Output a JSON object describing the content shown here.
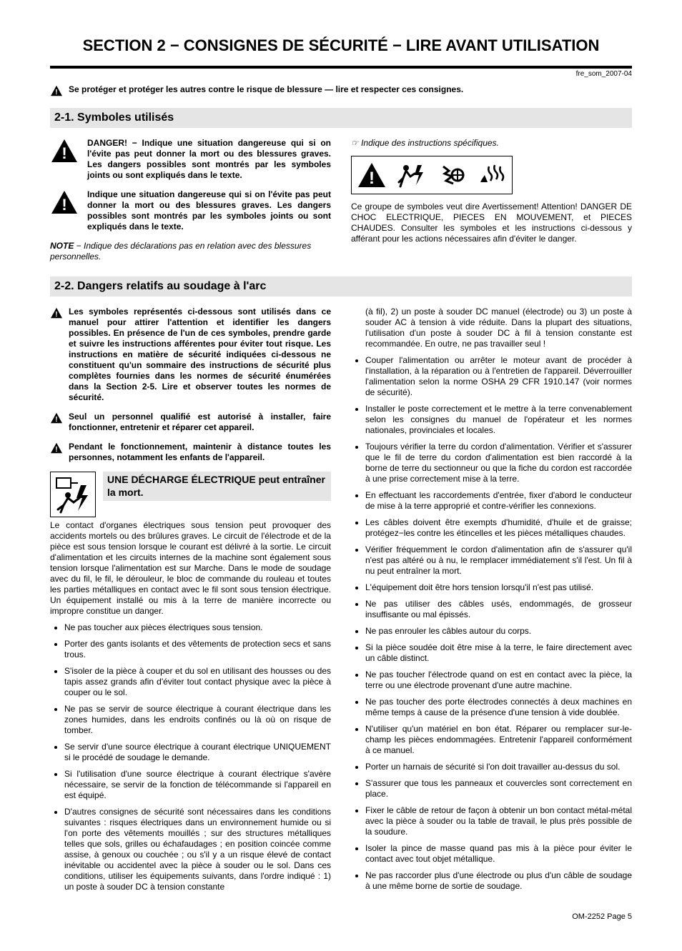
{
  "doc_ref": "fre_som_2007-04",
  "section_title": "SECTION 2 − CONSIGNES DE SÉCURITÉ − LIRE AVANT UTILISATION",
  "top_warning": "Se protéger et protéger les autres contre le risque de blessure — lire et respecter ces consignes.",
  "sub1": {
    "heading": "2-1.   Symboles utilisés",
    "danger_text": "DANGER! − Indique une situation dangereuse qui si on l'évite pas peut donner la mort ou des blessures graves. Les dangers possibles sont montrés par les symboles joints ou sont expliqués dans le texte.",
    "warn_text": "Indique une situation dangereuse qui si on l'évite pas peut donner la mort ou des blessures graves. Les dangers possibles sont montrés par les symboles joints ou sont expliqués dans le texte.",
    "note_label": "NOTE",
    "note_text": " − Indique des déclarations pas en relation avec des blessures personnelles.",
    "pointer_text": "Indique des instructions spécifiques.",
    "group_caption": "Ce groupe de symboles veut dire Avertissement! Attention! DANGER DE CHOC ELECTRIQUE, PIECES EN MOUVEMENT, et PIECES CHAUDES. Consulter les symboles et les instructions ci-dessous y afférant pour les actions nécessaires afin d'éviter le danger."
  },
  "sub2": {
    "heading": "2-2.   Dangers relatifs au soudage à l'arc",
    "warn1": "Les symboles représentés ci-dessous sont utilisés dans ce manuel pour attirer l'attention et identifier les dangers possibles. En présence de l'un de ces symboles, prendre garde et suivre les instructions afférentes pour éviter tout risque. Les instructions en matière de sécurité indiquées ci-dessous ne constituent qu'un sommaire des instructions de sécurité plus complètes fournies dans les normes de sécurité énumérées dans la Section 2-5. Lire et observer toutes les normes de sécurité.",
    "warn2": "Seul un personnel qualifié est autorisé à installer, faire fonctionner, entretenir et réparer cet appareil.",
    "warn3": "Pendant le fonctionnement, maintenir à distance toutes les personnes, notamment les enfants de l'appareil.",
    "hazard_title": "UNE DÉCHARGE ÉLECTRIQUE peut entraîner la mort.",
    "hazard_intro": "Le contact d'organes électriques sous tension peut provoquer des accidents mortels ou des brûlures graves. Le circuit de l'électrode et de la pièce est sous tension lorsque le courant est délivré à la sortie. Le circuit d'alimentation et les circuits internes de la machine sont également sous tension lorsque l'alimentation est sur Marche. Dans le mode de soudage avec du fil, le fil, le dérouleur, le bloc de commande du rouleau et toutes les parties métalliques en contact avec le fil sont sous tension électrique. Un équipement installé ou mis à la terre de manière incorrecte ou impropre constitue un danger.",
    "left_bullets": [
      "Ne pas toucher aux pièces électriques sous tension.",
      "Porter des gants isolants et des vêtements de protection secs et sans trous.",
      "S'isoler de la pièce à couper et du sol en utilisant des housses ou des tapis assez grands afin d'éviter tout contact physique avec la pièce à couper ou le sol.",
      "Ne pas se servir de source électrique à courant électrique dans les zones humides, dans les endroits confinés ou là où on risque de tomber.",
      "Se servir d'une source électrique à courant électrique UNIQUEMENT si le procédé de soudage le demande.",
      "Si l'utilisation d'une source électrique à courant électrique s'avère nécessaire, se servir de la fonction de télécommande si l'appareil en est équipé.",
      "D'autres consignes de sécurité sont nécessaires dans les conditions suivantes : risques électriques dans un environnement humide ou si l'on porte des vêtements mouillés ; sur des structures métalliques telles que sols, grilles ou échafaudages ; en position coincée comme assise, à genoux ou couchée ; ou s'il y a un risque élevé de contact inévitable ou accidentel avec la pièce à souder ou le sol. Dans ces conditions, utiliser les équipements suivants, dans l'ordre indiqué : 1) un poste à souder DC à tension constante"
    ],
    "right_lead": "(à fil), 2) un poste à souder DC manuel (électrode) ou 3) un poste à souder AC à tension à vide réduite. Dans la plupart des situations, l'utilisation d'un poste à souder DC à fil à tension constante est recommandée. En outre, ne pas travailler seul !",
    "right_bullets": [
      "Couper l'alimentation ou arrêter le moteur avant de procéder à l'installation, à la réparation ou à l'entretien de l'appareil. Déverrouiller l'alimentation selon la norme OSHA 29 CFR 1910.147 (voir normes de sécurité).",
      "Installer le poste correctement et le mettre à la terre convenablement selon les consignes du manuel de l'opérateur et les normes nationales, provinciales et locales.",
      "Toujours vérifier la terre du cordon d'alimentation. Vérifier et s'assurer que le fil de terre du cordon d'alimentation est bien raccordé à la borne de terre du sectionneur ou que la fiche du cordon est raccordée à une prise correctement mise à la terre.",
      "En effectuant les raccordements d'entrée, fixer d'abord le conducteur de mise à la terre approprié et contre-vérifier les connexions.",
      "Les câbles doivent être exempts d'humidité, d'huile et de graisse; protégez−les contre les étincelles et les pièces métalliques chaudes.",
      "Vérifier fréquemment le cordon d'alimentation afin de s'assurer qu'il n'est pas altéré ou à nu, le remplacer immédiatement s'il l'est. Un fil à nu peut entraîner la mort.",
      "L'équipement doit être hors tension lorsqu'il n'est pas utilisé.",
      "Ne pas utiliser des câbles usés, endommagés, de grosseur insuffisante ou mal épissés.",
      "Ne pas enrouler les câbles autour du corps.",
      "Si la pièce soudée doit être mise à la terre, le faire directement avec un câble distinct.",
      "Ne pas toucher l'électrode quand on est en contact avec la pièce, la terre ou une électrode provenant d'une autre machine.",
      "Ne pas toucher des porte électrodes connectés à deux machines en même temps à cause de la présence d'une tension à vide doublée.",
      "N'utiliser qu'un matériel en bon état. Réparer ou remplacer sur-le-champ les pièces endommagées. Entretenir l'appareil conformément à ce manuel.",
      "Porter un harnais de sécurité si l'on doit travailler au-dessus du sol.",
      "S'assurer que tous les panneaux et couvercles sont correctement en place.",
      "Fixer le câble de retour de façon à obtenir un bon contact métal-métal avec la pièce à souder ou la table de travail, le plus près possible de la soudure.",
      "Isoler la pince de masse quand pas mis à la pièce pour éviter le contact avec tout objet métallique.",
      "Ne pas raccorder plus d'une électrode ou plus d'un câble de soudage à une même borne de sortie de soudage."
    ]
  },
  "footer": "OM-2252 Page 5",
  "colors": {
    "heading_bg": "#e5e5e5",
    "rule": "#000000",
    "text": "#000000",
    "page_bg": "#ffffff"
  }
}
